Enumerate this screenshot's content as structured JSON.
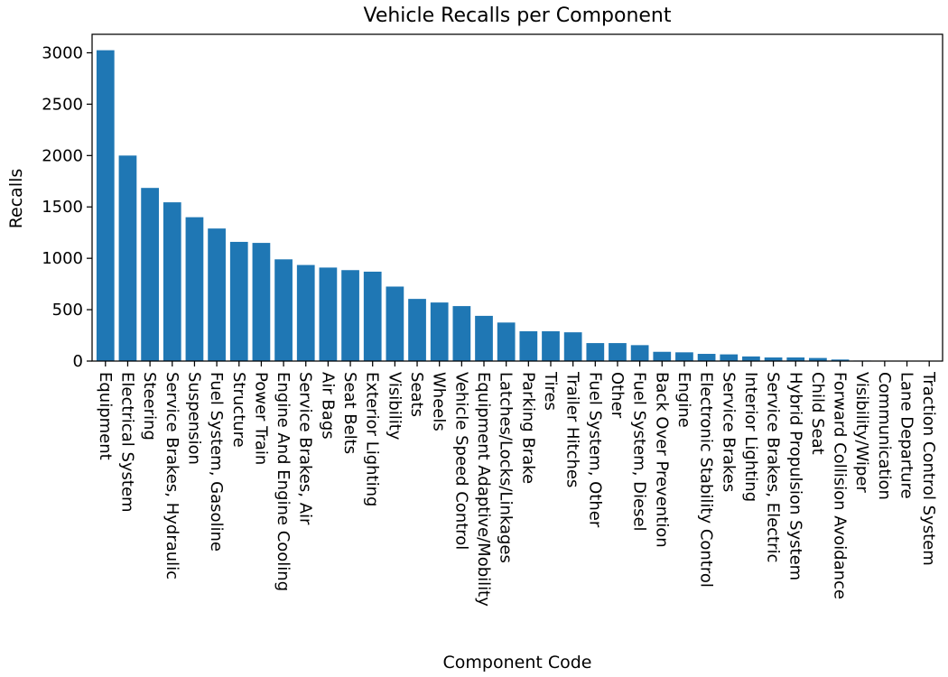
{
  "chart_data": {
    "type": "bar",
    "title": "Vehicle Recalls per Component",
    "xlabel": "Component Code",
    "ylabel": "Recalls",
    "ylim": [
      0,
      3180
    ],
    "yticks": [
      0,
      500,
      1000,
      1500,
      2000,
      2500,
      3000
    ],
    "grid": false,
    "legend": "none",
    "bar_color": "#1f77b4",
    "categories": [
      "Equipment",
      "Electrical System",
      "Steering",
      "Service Brakes, Hydraulic",
      "Suspension",
      "Fuel System, Gasoline",
      "Structure",
      "Power Train",
      "Engine And Engine Cooling",
      "Service Brakes, Air",
      "Air Bags",
      "Seat Belts",
      "Exterior Lighting",
      "Visibility",
      "Seats",
      "Wheels",
      "Vehicle Speed Control",
      "Equipment Adaptive/Mobility",
      "Latches/Locks/Linkages",
      "Parking Brake",
      "Tires",
      "Trailer Hitches",
      "Fuel System, Other",
      "Other",
      "Fuel System, Diesel",
      "Back Over Prevention",
      "Engine",
      "Electronic Stability Control",
      "Service Brakes",
      "Interior Lighting",
      "Service Brakes, Electric",
      "Hybrid Propulsion System",
      "Child Seat",
      "Forward Collision Avoidance",
      "Visibility/Wiper",
      "Communication",
      "Lane Departure",
      "Traction Control System"
    ],
    "values": [
      3025,
      2000,
      1685,
      1545,
      1400,
      1290,
      1160,
      1150,
      990,
      935,
      910,
      885,
      870,
      725,
      605,
      570,
      535,
      440,
      375,
      290,
      290,
      280,
      175,
      175,
      155,
      90,
      85,
      70,
      65,
      45,
      35,
      35,
      30,
      15,
      5,
      4,
      3,
      2
    ]
  }
}
